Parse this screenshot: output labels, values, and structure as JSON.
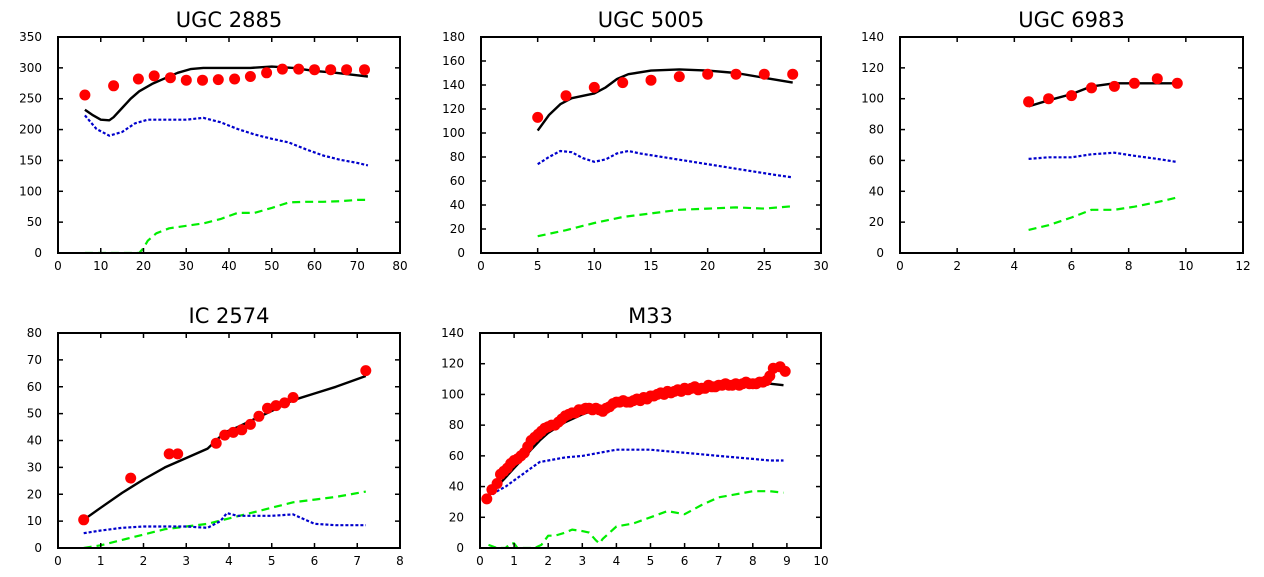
{
  "styles": {
    "observed": {
      "color": "#ff0000",
      "marker": "circle"
    },
    "total": {
      "color": "#000000",
      "dash": "solid"
    },
    "component_blue": {
      "color": "#0000cc",
      "dash": "dotted"
    },
    "component_green": {
      "color": "#00ee00",
      "dash": "dashed"
    }
  },
  "chart_data": [
    {
      "type": "line",
      "title": "UGC 2885",
      "xlabel": "",
      "ylabel": "",
      "xlim": [
        0,
        80
      ],
      "ylim": [
        0,
        350
      ],
      "xticks": [
        0,
        10,
        20,
        30,
        40,
        50,
        60,
        70,
        80
      ],
      "yticks": [
        0,
        50,
        100,
        150,
        200,
        250,
        300,
        350
      ],
      "grid": false,
      "series": [
        {
          "role": "observed",
          "x": [
            6.3,
            13,
            18.8,
            22.5,
            26.3,
            30,
            33.8,
            37.5,
            41.3,
            45,
            48.8,
            52.5,
            56.3,
            60,
            63.8,
            67.5,
            71.7
          ],
          "y": [
            256,
            271,
            282,
            287,
            284,
            280,
            280,
            281,
            282,
            286,
            292,
            298,
            298,
            297,
            297,
            297,
            297
          ]
        },
        {
          "role": "total",
          "x": [
            6.3,
            8,
            10,
            12,
            13,
            15,
            17,
            19,
            22,
            25,
            28,
            31,
            34,
            36,
            40,
            45,
            50,
            55,
            60,
            65,
            70,
            72.5
          ],
          "y": [
            232,
            224,
            216,
            215,
            220,
            235,
            250,
            262,
            274,
            283,
            292,
            298,
            300,
            300,
            300,
            300,
            302,
            300,
            295,
            292,
            288,
            286
          ]
        },
        {
          "role": "component_blue",
          "x": [
            6.3,
            9,
            12,
            15,
            18,
            21,
            25,
            30,
            34,
            38,
            42,
            46,
            50,
            54,
            58,
            62,
            66,
            70,
            72.5
          ],
          "y": [
            223,
            201,
            190,
            196,
            210,
            216,
            216,
            216,
            219,
            212,
            201,
            192,
            185,
            179,
            168,
            158,
            151,
            146,
            142
          ]
        },
        {
          "role": "component_green",
          "x": [
            6.3,
            10,
            15,
            19,
            20,
            21,
            23,
            26,
            30,
            34,
            38,
            42,
            46,
            50,
            54,
            58,
            62,
            66,
            70,
            72.5
          ],
          "y": [
            0,
            0,
            0,
            0,
            8,
            20,
            32,
            40,
            44,
            48,
            55,
            65,
            65,
            73,
            82,
            83,
            83,
            84,
            86,
            86
          ]
        }
      ]
    },
    {
      "type": "line",
      "title": "UGC 5005",
      "xlabel": "",
      "ylabel": "",
      "xlim": [
        0,
        30
      ],
      "ylim": [
        0,
        180
      ],
      "xticks": [
        0,
        5,
        10,
        15,
        20,
        25,
        30
      ],
      "yticks": [
        0,
        20,
        40,
        60,
        80,
        100,
        120,
        140,
        160,
        180
      ],
      "grid": false,
      "series": [
        {
          "role": "observed",
          "x": [
            5,
            7.5,
            10,
            12.5,
            15,
            17.5,
            20,
            22.5,
            25,
            27.5
          ],
          "y": [
            113,
            131,
            138,
            142,
            144,
            147,
            149,
            149,
            149,
            149
          ]
        },
        {
          "role": "total",
          "x": [
            5,
            6,
            7,
            8,
            9,
            10,
            11,
            12,
            13,
            15,
            17.5,
            20,
            22.5,
            25,
            27.5
          ],
          "y": [
            102,
            115,
            124,
            129,
            131,
            133,
            138,
            145,
            149,
            152,
            153,
            152,
            150,
            146,
            142
          ]
        },
        {
          "role": "component_blue",
          "x": [
            5,
            6,
            7,
            8,
            9,
            10,
            11,
            12,
            13,
            14,
            16,
            18,
            20,
            22,
            24,
            26,
            27.5
          ],
          "y": [
            74,
            80,
            85,
            84,
            79,
            76,
            78,
            83,
            85,
            83,
            80,
            77,
            74,
            71,
            68,
            65,
            63
          ]
        },
        {
          "role": "component_green",
          "x": [
            5,
            7.5,
            10,
            12.5,
            15,
            17.5,
            20,
            22.5,
            25,
            27.5
          ],
          "y": [
            14,
            19,
            25,
            30,
            33,
            36,
            37,
            38,
            37,
            39
          ]
        }
      ]
    },
    {
      "type": "line",
      "title": "UGC 6983",
      "xlabel": "",
      "ylabel": "",
      "xlim": [
        0,
        12
      ],
      "ylim": [
        0,
        140
      ],
      "xticks": [
        0,
        2,
        4,
        6,
        8,
        10,
        12
      ],
      "yticks": [
        0,
        20,
        40,
        60,
        80,
        100,
        120,
        140
      ],
      "grid": false,
      "series": [
        {
          "role": "observed",
          "x": [
            4.5,
            5.2,
            6,
            6.7,
            7.5,
            8.2,
            9,
            9.7
          ],
          "y": [
            98,
            100,
            102,
            107,
            108,
            110,
            113,
            110
          ]
        },
        {
          "role": "total",
          "x": [
            4.5,
            5.2,
            6,
            6.7,
            7.5,
            8.2,
            9,
            9.7
          ],
          "y": [
            95,
            99,
            103,
            108,
            110,
            110,
            110,
            110
          ]
        },
        {
          "role": "component_blue",
          "x": [
            4.5,
            5.2,
            6,
            6.7,
            7.5,
            8.2,
            9,
            9.7
          ],
          "y": [
            61,
            62,
            62,
            64,
            65,
            63,
            61,
            59
          ]
        },
        {
          "role": "component_green",
          "x": [
            4.5,
            5.2,
            6,
            6.7,
            7.5,
            8.2,
            9,
            9.7
          ],
          "y": [
            15,
            18,
            23,
            28,
            28,
            30,
            33,
            36
          ]
        }
      ]
    },
    {
      "type": "line",
      "title": "IC 2574",
      "xlabel": "",
      "ylabel": "",
      "xlim": [
        0,
        8
      ],
      "ylim": [
        0,
        80
      ],
      "xticks": [
        0,
        1,
        2,
        3,
        4,
        5,
        6,
        7,
        8
      ],
      "yticks": [
        0,
        10,
        20,
        30,
        40,
        50,
        60,
        70,
        80
      ],
      "grid": false,
      "series": [
        {
          "role": "observed",
          "x": [
            0.6,
            1.7,
            2.6,
            2.8,
            3.7,
            3.9,
            4.1,
            4.3,
            4.5,
            4.7,
            4.9,
            5.1,
            5.3,
            5.5,
            7.2
          ],
          "y": [
            10.5,
            26,
            35,
            35,
            39,
            42,
            43,
            44,
            46,
            49,
            52,
            53,
            54,
            56,
            66
          ]
        },
        {
          "role": "total",
          "x": [
            0.6,
            1,
            1.5,
            2,
            2.5,
            3,
            3.5,
            3.9,
            4.2,
            4.6,
            5,
            5.5,
            6,
            6.5,
            7.2
          ],
          "y": [
            10.5,
            15,
            20.5,
            25.5,
            30,
            33.5,
            37,
            43,
            45,
            48,
            51,
            55,
            57.5,
            60,
            64
          ]
        },
        {
          "role": "component_blue",
          "x": [
            0.6,
            1,
            1.5,
            2,
            2.5,
            3,
            3.5,
            3.8,
            3.95,
            4.2,
            4.6,
            5,
            5.5,
            6,
            6.5,
            7.2
          ],
          "y": [
            5.5,
            6.5,
            7.5,
            8,
            8,
            8,
            7.5,
            10,
            13,
            12,
            12,
            12,
            12.5,
            9,
            8.5,
            8.5
          ]
        },
        {
          "role": "component_green",
          "x": [
            0.6,
            1,
            1.5,
            2,
            2.5,
            3,
            3.5,
            4,
            4.5,
            5,
            5.5,
            6,
            6.5,
            7.2
          ],
          "y": [
            0,
            1,
            3,
            5,
            7,
            8,
            9,
            11,
            13,
            15,
            17,
            18,
            19,
            21
          ]
        }
      ]
    },
    {
      "type": "line",
      "title": "M33",
      "xlabel": "",
      "ylabel": "",
      "xlim": [
        0,
        10
      ],
      "ylim": [
        0,
        140
      ],
      "xticks": [
        0,
        1,
        2,
        3,
        4,
        5,
        6,
        7,
        8,
        9,
        10
      ],
      "yticks": [
        0,
        20,
        40,
        60,
        80,
        100,
        120,
        140
      ],
      "grid": false,
      "series": [
        {
          "role": "observed",
          "x": [
            0.2,
            0.35,
            0.5,
            0.6,
            0.7,
            0.8,
            0.9,
            1.0,
            1.1,
            1.2,
            1.3,
            1.4,
            1.5,
            1.6,
            1.7,
            1.8,
            1.9,
            2.0,
            2.1,
            2.2,
            2.3,
            2.4,
            2.5,
            2.6,
            2.7,
            2.8,
            2.9,
            3.0,
            3.1,
            3.2,
            3.3,
            3.4,
            3.5,
            3.6,
            3.7,
            3.8,
            3.9,
            4.0,
            4.1,
            4.2,
            4.3,
            4.4,
            4.5,
            4.6,
            4.7,
            4.8,
            4.9,
            5.0,
            5.1,
            5.2,
            5.3,
            5.4,
            5.5,
            5.6,
            5.7,
            5.8,
            5.9,
            6.0,
            6.1,
            6.2,
            6.3,
            6.4,
            6.5,
            6.6,
            6.7,
            6.8,
            6.9,
            7.0,
            7.1,
            7.2,
            7.3,
            7.4,
            7.5,
            7.6,
            7.7,
            7.8,
            7.9,
            8.0,
            8.1,
            8.2,
            8.3,
            8.4,
            8.5,
            8.6,
            8.8,
            8.95
          ],
          "y": [
            32,
            38,
            42,
            48,
            50,
            52,
            55,
            57,
            58,
            60,
            62,
            66,
            70,
            72,
            74,
            76,
            78,
            79,
            80,
            80,
            82,
            84,
            86,
            87,
            88,
            88,
            90,
            90,
            91,
            91,
            90,
            91,
            90,
            89,
            91,
            92,
            94,
            95,
            95,
            96,
            95,
            95,
            96,
            97,
            96,
            98,
            97,
            99,
            99,
            100,
            101,
            100,
            102,
            101,
            102,
            103,
            102,
            104,
            103,
            104,
            105,
            103,
            104,
            104,
            106,
            105,
            105,
            106,
            106,
            107,
            106,
            106,
            107,
            106,
            107,
            108,
            107,
            107,
            107,
            108,
            108,
            109,
            112,
            117,
            118,
            115
          ]
        },
        {
          "role": "total",
          "x": [
            0.25,
            0.5,
            0.75,
            1,
            1.25,
            1.5,
            1.75,
            2,
            2.5,
            3,
            3.5,
            4,
            4.5,
            5,
            5.5,
            6,
            6.5,
            7,
            7.5,
            8,
            8.5,
            8.9
          ],
          "y": [
            34,
            40,
            46,
            52,
            58,
            64,
            70,
            75,
            82,
            87,
            91,
            95,
            98,
            101,
            103,
            104,
            105,
            106,
            107,
            107,
            107,
            106
          ]
        },
        {
          "role": "component_blue",
          "x": [
            0.25,
            0.5,
            0.75,
            1,
            1.25,
            1.5,
            1.75,
            2,
            2.5,
            3,
            3.5,
            4,
            4.5,
            5,
            5.5,
            6,
            6.5,
            7,
            7.5,
            8,
            8.5,
            8.9
          ],
          "y": [
            33,
            37,
            40,
            44,
            48,
            52,
            56,
            57,
            59,
            60,
            62,
            64,
            64,
            64,
            63,
            62,
            61,
            60,
            59,
            58,
            57,
            57
          ]
        },
        {
          "role": "component_green",
          "x": [
            0.25,
            0.5,
            0.75,
            0.9,
            1.0,
            1.1,
            1.3,
            1.6,
            1.8,
            2.0,
            2.2,
            2.5,
            2.7,
            3.0,
            3.2,
            3.4,
            3.5,
            3.6,
            3.8,
            4.0,
            4.5,
            5.0,
            5.5,
            6.0,
            6.5,
            7.0,
            7.5,
            8.0,
            8.5,
            8.9
          ],
          "y": [
            2,
            0,
            0,
            3,
            3,
            0,
            0,
            0,
            2,
            8,
            8,
            10,
            12,
            11,
            10,
            5,
            3,
            6,
            10,
            14,
            16,
            20,
            24,
            22,
            28,
            33,
            35,
            37,
            37,
            36
          ]
        }
      ]
    }
  ]
}
